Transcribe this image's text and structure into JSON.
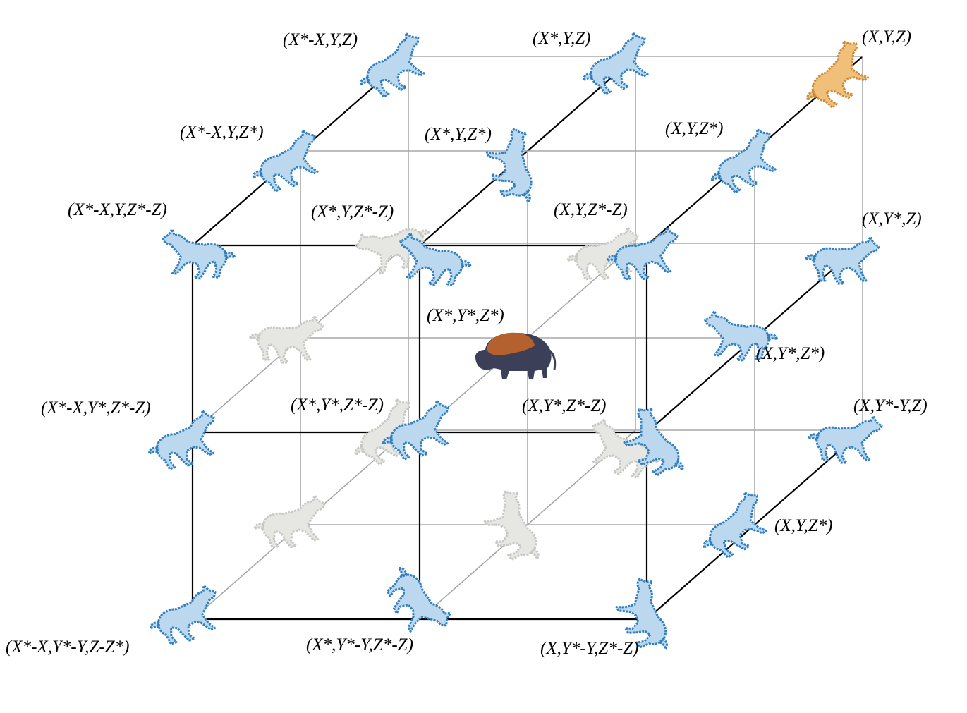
{
  "diagram": {
    "colors": {
      "front_edges": "#000000",
      "back_edges": "#a8a8a8",
      "wolf_visible": "#2f7fc1",
      "wolf_visible_fill": "#bcd8ee",
      "wolf_hidden": "#c8c8c4",
      "wolf_hidden_fill": "#e6e6e2",
      "leader_wolf": "#c98b3a",
      "leader_wolf_fill": "#f0c07a",
      "prey_body": "#3b3f58",
      "prey_hump": "#b5612e"
    },
    "prey": {
      "icon": "bison-icon",
      "label": "(X*,Y*,Z*)"
    },
    "leader": {
      "icon": "wolf-icon",
      "label": "(X,Y,Z)"
    },
    "labels": [
      "(X*-X,Y,Z)",
      "(X*,Y,Z)",
      "(X,Y,Z)",
      "(X*-X,Y,Z*)",
      "(X*,Y,Z*)",
      "(X,Y,Z*)",
      "(X*-X,Y,Z*-Z)",
      "(X*,Y,Z*-Z)",
      "(X,Y,Z*-Z)",
      "(X,Y*,Z)",
      "(X*,Y*,Z*)",
      "(X,Y*,Z*)",
      "(X*-X,Y*,Z*-Z)",
      "(X*,Y*,Z*-Z)",
      "(X,Y*,Z*-Z)",
      "(X,Y*-Y,Z)",
      "(X,Y,Z*)",
      "(X*-X,Y*-Y,Z-Z*)",
      "(X*,Y*-Y,Z*-Z)",
      "(X,Y*-Y,Z*-Z)"
    ]
  }
}
